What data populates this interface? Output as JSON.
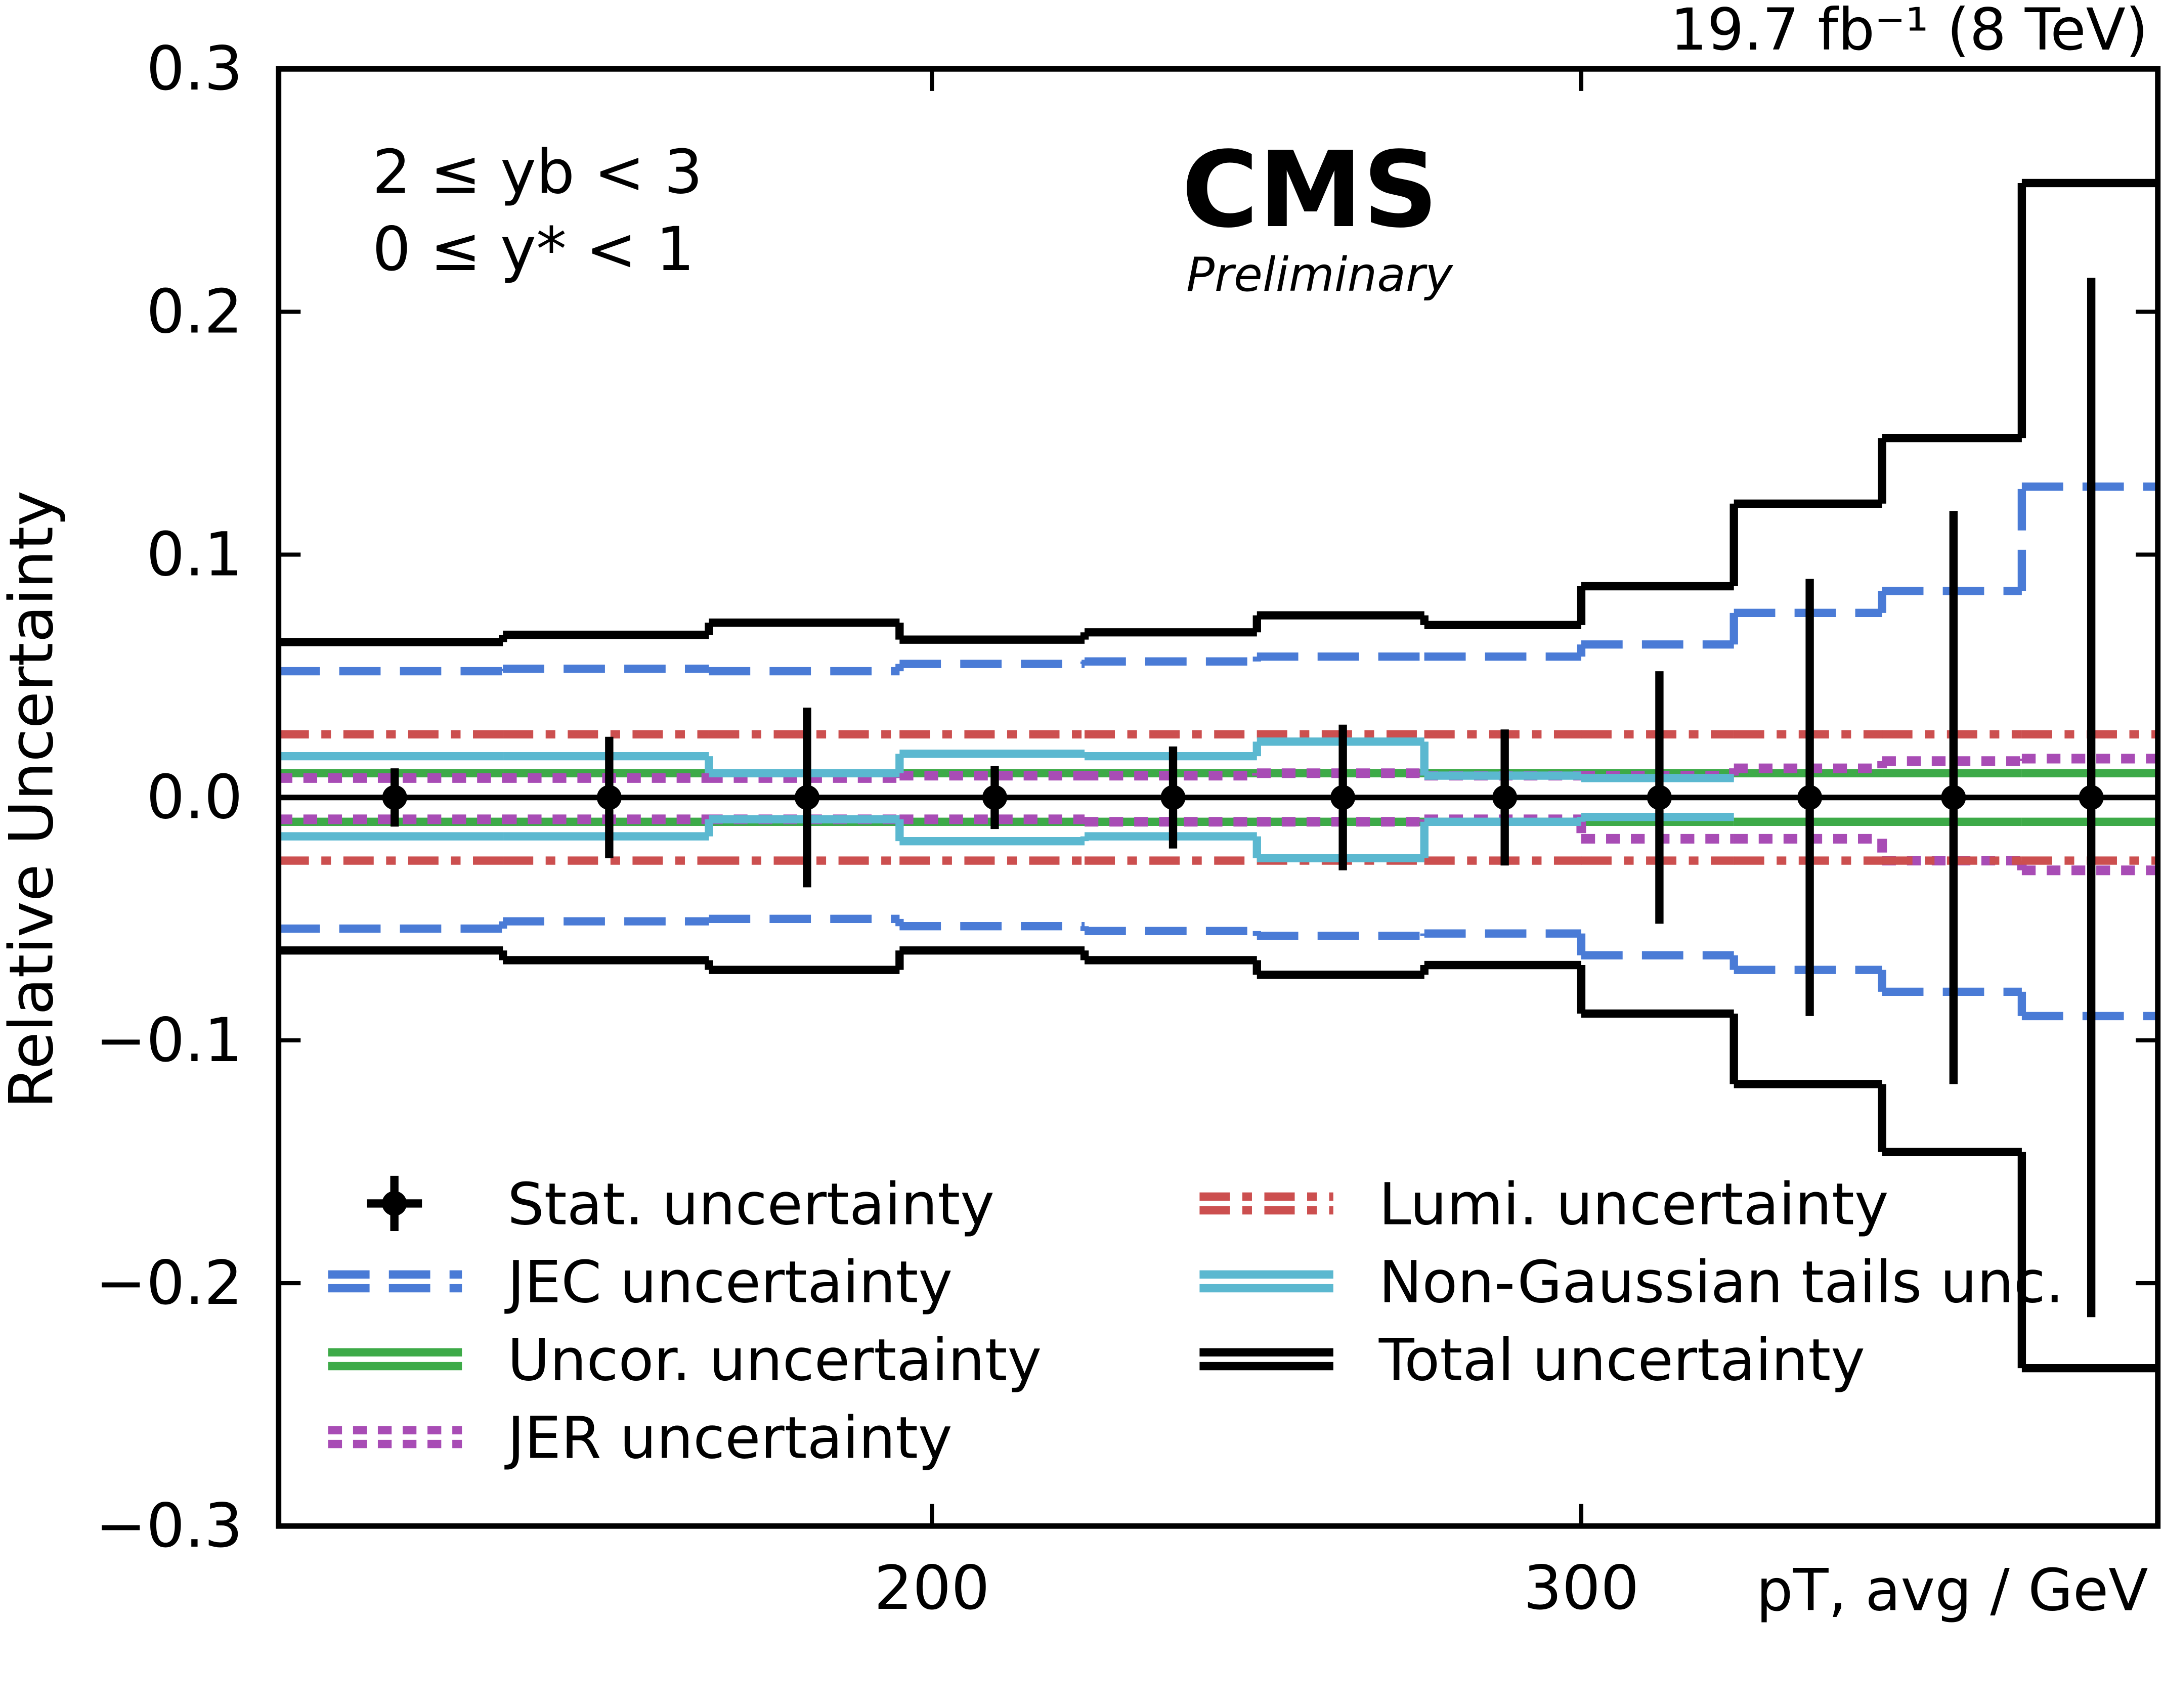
{
  "chart_data": {
    "type": "step",
    "title": "19.7 fb⁻¹ (8 TeV)",
    "annotations": [
      "2 ≤ yb < 3",
      "0 ≤ y* < 1"
    ],
    "logo": "CMS",
    "logo_subtitle": "Preliminary",
    "x_label": "pT, avg / GeV",
    "y_label": "Relative Uncertainty",
    "xscale": "log",
    "xlim": [
      133,
      430
    ],
    "xticks": [
      200,
      300
    ],
    "ylim": [
      -0.3,
      0.3
    ],
    "yticks": [
      {
        "value": -0.3,
        "label": "−0.3"
      },
      {
        "value": -0.2,
        "label": "−0.2"
      },
      {
        "value": -0.1,
        "label": "−0.1"
      },
      {
        "value": 0,
        "label": "0.0"
      },
      0.1,
      0.2,
      0.3
    ],
    "legend": "lower left",
    "legend_columns": 2,
    "bins": [
      133,
      153,
      174,
      196,
      220,
      245,
      272,
      300,
      330,
      362,
      395,
      430
    ],
    "series": [
      {
        "name": "Stat. uncertainty",
        "style": "errorbar",
        "color": "#000000",
        "x": [
          143,
          163.5,
          185,
          208,
          232.5,
          258.5,
          286,
          315,
          346,
          378.5,
          412.5
        ],
        "values": [
          0,
          0,
          0,
          0,
          0,
          0,
          0,
          0,
          0,
          0,
          0
        ],
        "errors": [
          0.012,
          0.025,
          0.037,
          0.013,
          0.021,
          0.03,
          0.028,
          0.052,
          0.09,
          0.118,
          0.214
        ]
      },
      {
        "name": "JEC uncertainty",
        "style": "dashed",
        "color": "#4a7bd6",
        "upper": [
          0.052,
          0.053,
          0.052,
          0.055,
          0.056,
          0.058,
          0.058,
          0.063,
          0.076,
          0.085,
          0.128
        ],
        "lower": [
          -0.054,
          -0.051,
          -0.05,
          -0.053,
          -0.055,
          -0.057,
          -0.056,
          -0.065,
          -0.071,
          -0.08,
          -0.09
        ]
      },
      {
        "name": "Uncor. uncertainty",
        "style": "solid",
        "color": "#3daa48",
        "upper": [
          0.01,
          0.01,
          0.01,
          0.01,
          0.01,
          0.01,
          0.01,
          0.01,
          0.01,
          0.01,
          0.01
        ],
        "lower": [
          -0.01,
          -0.01,
          -0.01,
          -0.01,
          -0.01,
          -0.01,
          -0.01,
          -0.01,
          -0.01,
          -0.01,
          -0.01
        ]
      },
      {
        "name": "JER uncertainty",
        "style": "dotted",
        "color": "#a84cb5",
        "upper": [
          0.008,
          0.008,
          0.008,
          0.009,
          0.009,
          0.01,
          0.009,
          0.009,
          0.012,
          0.015,
          0.016
        ],
        "lower": [
          -0.009,
          -0.009,
          -0.009,
          -0.009,
          -0.01,
          -0.01,
          -0.009,
          -0.017,
          -0.017,
          -0.026,
          -0.03
        ]
      },
      {
        "name": "Lumi. uncertainty",
        "style": "dashdot",
        "color": "#cc4f4f",
        "upper": [
          0.026,
          0.026,
          0.026,
          0.026,
          0.026,
          0.026,
          0.026,
          0.026,
          0.026,
          0.026,
          0.026
        ],
        "lower": [
          -0.026,
          -0.026,
          -0.026,
          -0.026,
          -0.026,
          -0.026,
          -0.026,
          -0.026,
          -0.026,
          -0.026,
          -0.026
        ]
      },
      {
        "name": "Non-Gaussian tails unc.",
        "style": "solid",
        "color": "#5bb8d0",
        "upper": [
          0.017,
          0.017,
          0.01,
          0.018,
          0.017,
          0.023,
          0.009,
          0.008,
          null,
          null,
          null
        ],
        "lower": [
          -0.016,
          -0.016,
          -0.009,
          -0.018,
          -0.016,
          -0.025,
          -0.01,
          -0.008,
          null,
          null,
          null
        ]
      },
      {
        "name": "Total uncertainty",
        "style": "solid",
        "color": "#000000",
        "upper": [
          0.064,
          0.067,
          0.072,
          0.065,
          0.068,
          0.075,
          0.071,
          0.087,
          0.121,
          0.148,
          0.253
        ],
        "lower": [
          -0.063,
          -0.067,
          -0.071,
          -0.063,
          -0.067,
          -0.073,
          -0.069,
          -0.089,
          -0.118,
          -0.146,
          -0.235
        ]
      }
    ]
  }
}
